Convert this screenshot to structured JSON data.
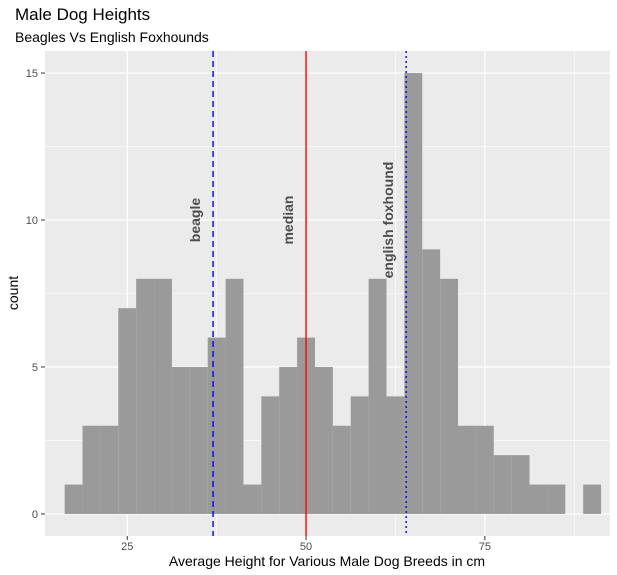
{
  "chart_data": {
    "type": "histogram",
    "title": "Male Dog Heights",
    "subtitle": "Beagles Vs English Foxhounds",
    "xlabel": "Average Height for Various Male Dog Breeds in cm",
    "ylabel": "count",
    "xlim": [
      13.5,
      92.5
    ],
    "ylim": [
      -0.75,
      15.75
    ],
    "x_ticks": [
      25,
      50,
      75
    ],
    "y_ticks": [
      0,
      5,
      10,
      15
    ],
    "grid": true,
    "bin_width": 2.5,
    "bins": [
      {
        "x_start": 16.25,
        "count": 1
      },
      {
        "x_start": 18.75,
        "count": 3
      },
      {
        "x_start": 21.25,
        "count": 3
      },
      {
        "x_start": 23.75,
        "count": 7
      },
      {
        "x_start": 26.25,
        "count": 8
      },
      {
        "x_start": 28.75,
        "count": 8
      },
      {
        "x_start": 31.25,
        "count": 5
      },
      {
        "x_start": 33.75,
        "count": 5
      },
      {
        "x_start": 36.25,
        "count": 6
      },
      {
        "x_start": 38.75,
        "count": 8
      },
      {
        "x_start": 41.25,
        "count": 1
      },
      {
        "x_start": 43.75,
        "count": 4
      },
      {
        "x_start": 46.25,
        "count": 5
      },
      {
        "x_start": 48.75,
        "count": 6
      },
      {
        "x_start": 51.25,
        "count": 5
      },
      {
        "x_start": 53.75,
        "count": 3
      },
      {
        "x_start": 56.25,
        "count": 4
      },
      {
        "x_start": 58.75,
        "count": 8
      },
      {
        "x_start": 61.25,
        "count": 4
      },
      {
        "x_start": 63.75,
        "count": 15
      },
      {
        "x_start": 66.25,
        "count": 9
      },
      {
        "x_start": 68.75,
        "count": 8
      },
      {
        "x_start": 71.25,
        "count": 3
      },
      {
        "x_start": 73.75,
        "count": 3
      },
      {
        "x_start": 76.25,
        "count": 2
      },
      {
        "x_start": 78.75,
        "count": 2
      },
      {
        "x_start": 81.25,
        "count": 1
      },
      {
        "x_start": 83.75,
        "count": 1
      },
      {
        "x_start": 86.25,
        "count": 0
      },
      {
        "x_start": 88.75,
        "count": 1
      }
    ],
    "reference_lines": [
      {
        "label": "beagle",
        "x": 37.0,
        "color": "#0000ff",
        "style": "dashed"
      },
      {
        "label": "median",
        "x": 50.0,
        "color": "#ff0000",
        "style": "solid"
      },
      {
        "label": "english foxhound",
        "x": 64.0,
        "color": "#0000ff",
        "style": "dotted"
      }
    ],
    "colors": {
      "panel": "#ebebeb",
      "bar": "#9a9a9a",
      "grid": "#ffffff"
    }
  }
}
